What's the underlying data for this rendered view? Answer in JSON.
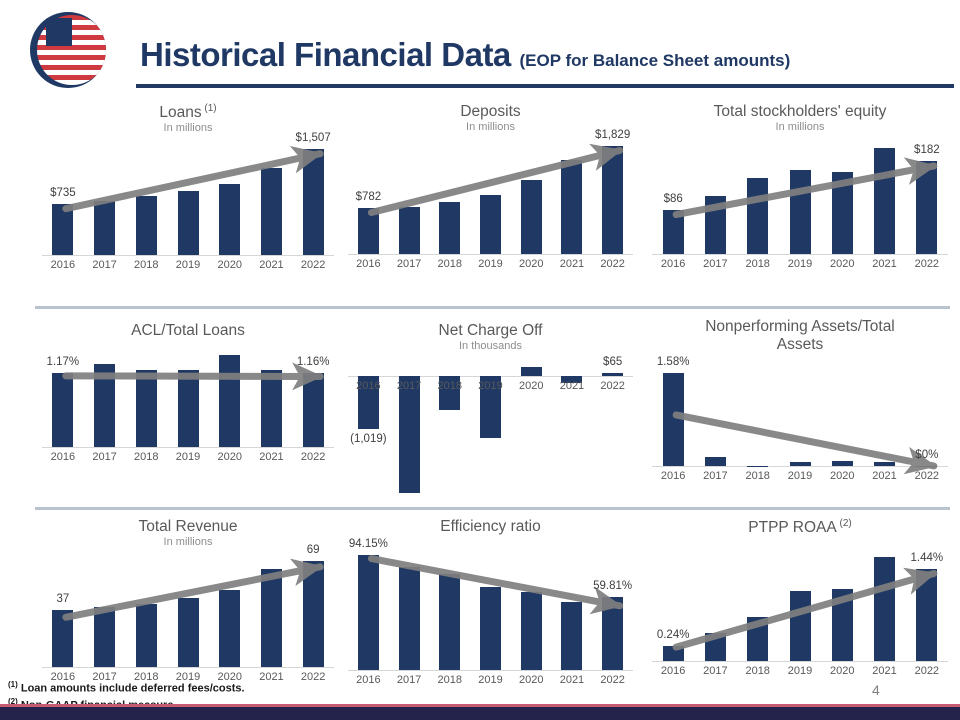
{
  "slide": {
    "title": "Historical Financial Data",
    "title_suffix": "(EOP for Balance Sheet amounts)",
    "page_number": "4",
    "footnotes": [
      {
        "sup": "(1)",
        "text": "Loan amounts include deferred fees/costs."
      },
      {
        "sup": "(2)",
        "text": "Non-GAAP financial measure."
      }
    ]
  },
  "colors": {
    "bar_navy": "#1f3864",
    "title_navy": "#1f3864",
    "arrow_gray": "#7f7f7f",
    "divider_gray": "#b9c3cd",
    "footer_red": "#c65b72",
    "footer_navy": "#23234c"
  },
  "chart_data": [
    {
      "id": "loans",
      "type": "bar",
      "title": "Loans",
      "title_sup": "(1)",
      "subtitle": "In millions",
      "categories": [
        "2016",
        "2017",
        "2018",
        "2019",
        "2020",
        "2021",
        "2022"
      ],
      "values": [
        735,
        770,
        840,
        920,
        1010,
        1240,
        1507
      ],
      "ylim": [
        0,
        1600
      ],
      "labels": [
        {
          "text": "$735",
          "cat": 0,
          "pos": "above"
        },
        {
          "text": "$1,507",
          "cat": 6,
          "pos": "above"
        }
      ],
      "arrow": {
        "from": [
          0,
          0.1
        ],
        "to": [
          6,
          0.04
        ]
      }
    },
    {
      "id": "deposits",
      "type": "bar",
      "title": "Deposits",
      "title_sup": "",
      "subtitle": "In millions",
      "categories": [
        "2016",
        "2017",
        "2018",
        "2019",
        "2020",
        "2021",
        "2022"
      ],
      "values": [
        782,
        800,
        875,
        1000,
        1250,
        1590,
        1829
      ],
      "ylim": [
        0,
        1900
      ],
      "labels": [
        {
          "text": "$782",
          "cat": 0,
          "pos": "above"
        },
        {
          "text": "$1,829",
          "cat": 6,
          "pos": "above"
        }
      ],
      "arrow": {
        "from": [
          0,
          0.1
        ],
        "to": [
          6,
          0.04
        ]
      }
    },
    {
      "id": "equity",
      "type": "bar",
      "title": "Total stockholders' equity",
      "title_sup": "",
      "subtitle": "In millions",
      "categories": [
        "2016",
        "2017",
        "2018",
        "2019",
        "2020",
        "2021",
        "2022"
      ],
      "values": [
        86,
        114,
        149,
        165,
        161,
        207,
        182
      ],
      "ylim": [
        0,
        220
      ],
      "labels": [
        {
          "text": "$86",
          "cat": 0,
          "pos": "above"
        },
        {
          "text": "$182",
          "cat": 6,
          "pos": "above"
        }
      ],
      "arrow": {
        "from": [
          0,
          0.1
        ],
        "to": [
          6,
          0.05
        ]
      }
    },
    {
      "id": "acl",
      "type": "bar",
      "title": "ACL/Total Loans",
      "title_sup": "",
      "subtitle": "",
      "categories": [
        "2016",
        "2017",
        "2018",
        "2019",
        "2020",
        "2021",
        "2022"
      ],
      "values": [
        1.17,
        1.3,
        1.22,
        1.22,
        1.45,
        1.22,
        1.16
      ],
      "ylim": [
        0,
        1.5
      ],
      "labels": [
        {
          "text": "1.17%",
          "cat": 0,
          "pos": "above"
        },
        {
          "text": "1.16%",
          "cat": 6,
          "pos": "above"
        }
      ],
      "arrow": {
        "from": [
          0,
          0.04
        ],
        "to": [
          6,
          0.04
        ]
      }
    },
    {
      "id": "nco",
      "type": "bar",
      "title": "Net Charge Off",
      "title_sup": "",
      "subtitle": "In thousands",
      "categories": [
        "2016",
        "2017",
        "2018",
        "2019",
        "2020",
        "2021",
        "2022"
      ],
      "values": [
        -1019,
        -2240,
        -658,
        -1180,
        185,
        -136,
        65
      ],
      "ylim": [
        -2400,
        300
      ],
      "labels": [
        {
          "text": "(1,019)",
          "cat": 0,
          "pos": "below"
        },
        {
          "text": "$65",
          "cat": 6,
          "pos": "above"
        }
      ],
      "arrow": null
    },
    {
      "id": "npa",
      "type": "bar",
      "title": "Nonperforming Assets/Total Assets",
      "title_sup": "",
      "subtitle": "",
      "categories": [
        "2016",
        "2017",
        "2018",
        "2019",
        "2020",
        "2021",
        "2022"
      ],
      "values": [
        1.58,
        0.15,
        0.0,
        0.06,
        0.08,
        0.06,
        0.0
      ],
      "ylim": [
        0,
        1.7
      ],
      "labels": [
        {
          "text": "1.58%",
          "cat": 0,
          "pos": "above"
        },
        {
          "text": "$0%",
          "cat": 6,
          "pos": "above"
        }
      ],
      "arrow": {
        "from": [
          0,
          0.45
        ],
        "to": [
          6,
          0.97
        ]
      }
    },
    {
      "id": "revenue",
      "type": "bar",
      "title": "Total Revenue",
      "title_sup": "",
      "subtitle": "In millions",
      "categories": [
        "2016",
        "2017",
        "2018",
        "2019",
        "2020",
        "2021",
        "2022"
      ],
      "values": [
        37,
        39,
        41,
        45,
        50,
        64,
        69
      ],
      "ylim": [
        0,
        72
      ],
      "labels": [
        {
          "text": "37",
          "cat": 0,
          "pos": "above"
        },
        {
          "text": "69",
          "cat": 6,
          "pos": "above"
        }
      ],
      "arrow": {
        "from": [
          0,
          0.12
        ],
        "to": [
          6,
          0.05
        ]
      }
    },
    {
      "id": "efficiency",
      "type": "bar",
      "title": "Efficiency ratio",
      "title_sup": "",
      "subtitle": "",
      "categories": [
        "2016",
        "2017",
        "2018",
        "2019",
        "2020",
        "2021",
        "2022"
      ],
      "values": [
        94.15,
        84.1,
        78.6,
        68.2,
        63.6,
        55.3,
        59.81
      ],
      "ylim": [
        0,
        100
      ],
      "labels": [
        {
          "text": "94.15%",
          "cat": 0,
          "pos": "above"
        },
        {
          "text": "59.81%",
          "cat": 6,
          "pos": "above"
        }
      ],
      "arrow": {
        "from": [
          0,
          0.03
        ],
        "to": [
          6,
          0.12
        ]
      }
    },
    {
      "id": "ptpp",
      "type": "bar",
      "title": "PTPP ROAA",
      "title_sup": "(2)",
      "subtitle": "",
      "categories": [
        "2016",
        "2017",
        "2018",
        "2019",
        "2020",
        "2021",
        "2022"
      ],
      "values": [
        0.24,
        0.43,
        0.68,
        1.1,
        1.13,
        1.62,
        1.44
      ],
      "ylim": [
        0,
        1.75
      ],
      "labels": [
        {
          "text": "0.24%",
          "cat": 0,
          "pos": "above"
        },
        {
          "text": "1.44%",
          "cat": 6,
          "pos": "above"
        }
      ],
      "arrow": {
        "from": [
          0,
          0.1
        ],
        "to": [
          6,
          0.05
        ]
      }
    }
  ]
}
